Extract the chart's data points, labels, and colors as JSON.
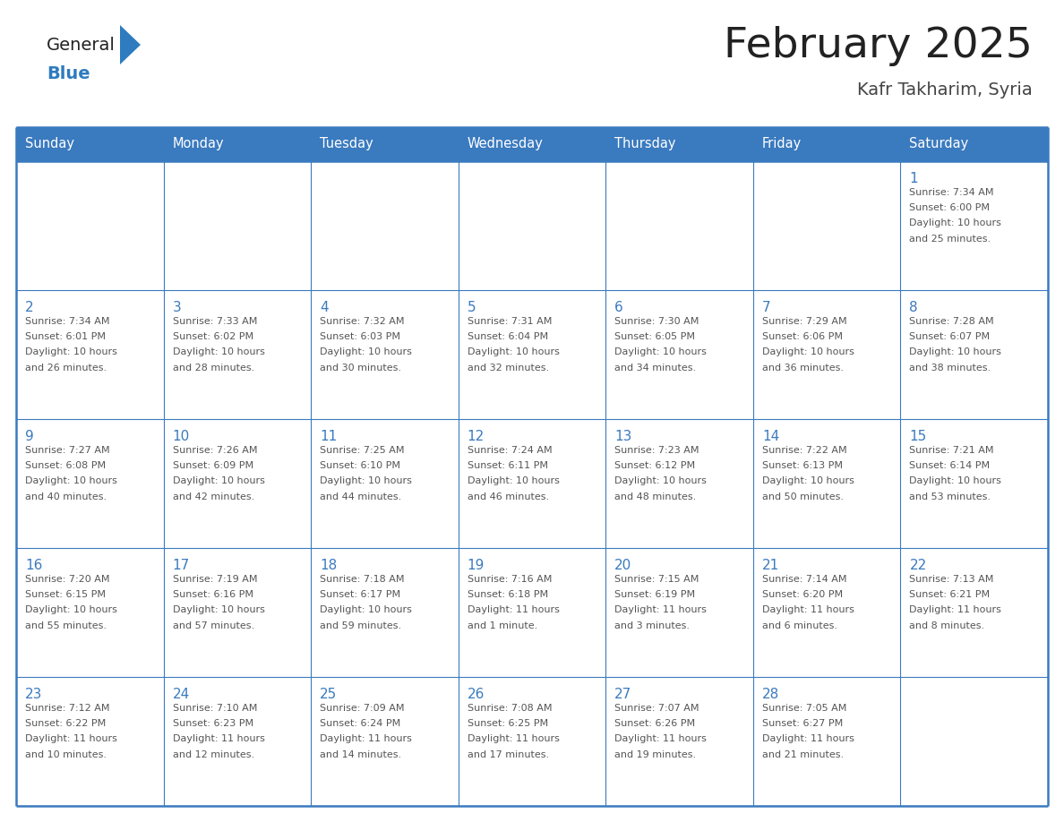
{
  "title": "February 2025",
  "subtitle": "Kafr Takharim, Syria",
  "days_of_week": [
    "Sunday",
    "Monday",
    "Tuesday",
    "Wednesday",
    "Thursday",
    "Friday",
    "Saturday"
  ],
  "header_bg": "#3a7abf",
  "header_text": "#ffffff",
  "cell_bg": "#ffffff",
  "border_color": "#3a7abf",
  "day_number_color": "#3a7abf",
  "text_color": "#555555",
  "logo_general_color": "#222222",
  "logo_blue_color": "#2e7bbf",
  "title_color": "#222222",
  "subtitle_color": "#444444",
  "calendar_data": [
    [
      null,
      null,
      null,
      null,
      null,
      null,
      {
        "day": "1",
        "sunrise": "7:34 AM",
        "sunset": "6:00 PM",
        "daylight": "10 hours",
        "daylight2": "and 25 minutes."
      }
    ],
    [
      {
        "day": "2",
        "sunrise": "7:34 AM",
        "sunset": "6:01 PM",
        "daylight": "10 hours",
        "daylight2": "and 26 minutes."
      },
      {
        "day": "3",
        "sunrise": "7:33 AM",
        "sunset": "6:02 PM",
        "daylight": "10 hours",
        "daylight2": "and 28 minutes."
      },
      {
        "day": "4",
        "sunrise": "7:32 AM",
        "sunset": "6:03 PM",
        "daylight": "10 hours",
        "daylight2": "and 30 minutes."
      },
      {
        "day": "5",
        "sunrise": "7:31 AM",
        "sunset": "6:04 PM",
        "daylight": "10 hours",
        "daylight2": "and 32 minutes."
      },
      {
        "day": "6",
        "sunrise": "7:30 AM",
        "sunset": "6:05 PM",
        "daylight": "10 hours",
        "daylight2": "and 34 minutes."
      },
      {
        "day": "7",
        "sunrise": "7:29 AM",
        "sunset": "6:06 PM",
        "daylight": "10 hours",
        "daylight2": "and 36 minutes."
      },
      {
        "day": "8",
        "sunrise": "7:28 AM",
        "sunset": "6:07 PM",
        "daylight": "10 hours",
        "daylight2": "and 38 minutes."
      }
    ],
    [
      {
        "day": "9",
        "sunrise": "7:27 AM",
        "sunset": "6:08 PM",
        "daylight": "10 hours",
        "daylight2": "and 40 minutes."
      },
      {
        "day": "10",
        "sunrise": "7:26 AM",
        "sunset": "6:09 PM",
        "daylight": "10 hours",
        "daylight2": "and 42 minutes."
      },
      {
        "day": "11",
        "sunrise": "7:25 AM",
        "sunset": "6:10 PM",
        "daylight": "10 hours",
        "daylight2": "and 44 minutes."
      },
      {
        "day": "12",
        "sunrise": "7:24 AM",
        "sunset": "6:11 PM",
        "daylight": "10 hours",
        "daylight2": "and 46 minutes."
      },
      {
        "day": "13",
        "sunrise": "7:23 AM",
        "sunset": "6:12 PM",
        "daylight": "10 hours",
        "daylight2": "and 48 minutes."
      },
      {
        "day": "14",
        "sunrise": "7:22 AM",
        "sunset": "6:13 PM",
        "daylight": "10 hours",
        "daylight2": "and 50 minutes."
      },
      {
        "day": "15",
        "sunrise": "7:21 AM",
        "sunset": "6:14 PM",
        "daylight": "10 hours",
        "daylight2": "and 53 minutes."
      }
    ],
    [
      {
        "day": "16",
        "sunrise": "7:20 AM",
        "sunset": "6:15 PM",
        "daylight": "10 hours",
        "daylight2": "and 55 minutes."
      },
      {
        "day": "17",
        "sunrise": "7:19 AM",
        "sunset": "6:16 PM",
        "daylight": "10 hours",
        "daylight2": "and 57 minutes."
      },
      {
        "day": "18",
        "sunrise": "7:18 AM",
        "sunset": "6:17 PM",
        "daylight": "10 hours",
        "daylight2": "and 59 minutes."
      },
      {
        "day": "19",
        "sunrise": "7:16 AM",
        "sunset": "6:18 PM",
        "daylight": "11 hours",
        "daylight2": "and 1 minute."
      },
      {
        "day": "20",
        "sunrise": "7:15 AM",
        "sunset": "6:19 PM",
        "daylight": "11 hours",
        "daylight2": "and 3 minutes."
      },
      {
        "day": "21",
        "sunrise": "7:14 AM",
        "sunset": "6:20 PM",
        "daylight": "11 hours",
        "daylight2": "and 6 minutes."
      },
      {
        "day": "22",
        "sunrise": "7:13 AM",
        "sunset": "6:21 PM",
        "daylight": "11 hours",
        "daylight2": "and 8 minutes."
      }
    ],
    [
      {
        "day": "23",
        "sunrise": "7:12 AM",
        "sunset": "6:22 PM",
        "daylight": "11 hours",
        "daylight2": "and 10 minutes."
      },
      {
        "day": "24",
        "sunrise": "7:10 AM",
        "sunset": "6:23 PM",
        "daylight": "11 hours",
        "daylight2": "and 12 minutes."
      },
      {
        "day": "25",
        "sunrise": "7:09 AM",
        "sunset": "6:24 PM",
        "daylight": "11 hours",
        "daylight2": "and 14 minutes."
      },
      {
        "day": "26",
        "sunrise": "7:08 AM",
        "sunset": "6:25 PM",
        "daylight": "11 hours",
        "daylight2": "and 17 minutes."
      },
      {
        "day": "27",
        "sunrise": "7:07 AM",
        "sunset": "6:26 PM",
        "daylight": "11 hours",
        "daylight2": "and 19 minutes."
      },
      {
        "day": "28",
        "sunrise": "7:05 AM",
        "sunset": "6:27 PM",
        "daylight": "11 hours",
        "daylight2": "and 21 minutes."
      },
      null
    ]
  ]
}
